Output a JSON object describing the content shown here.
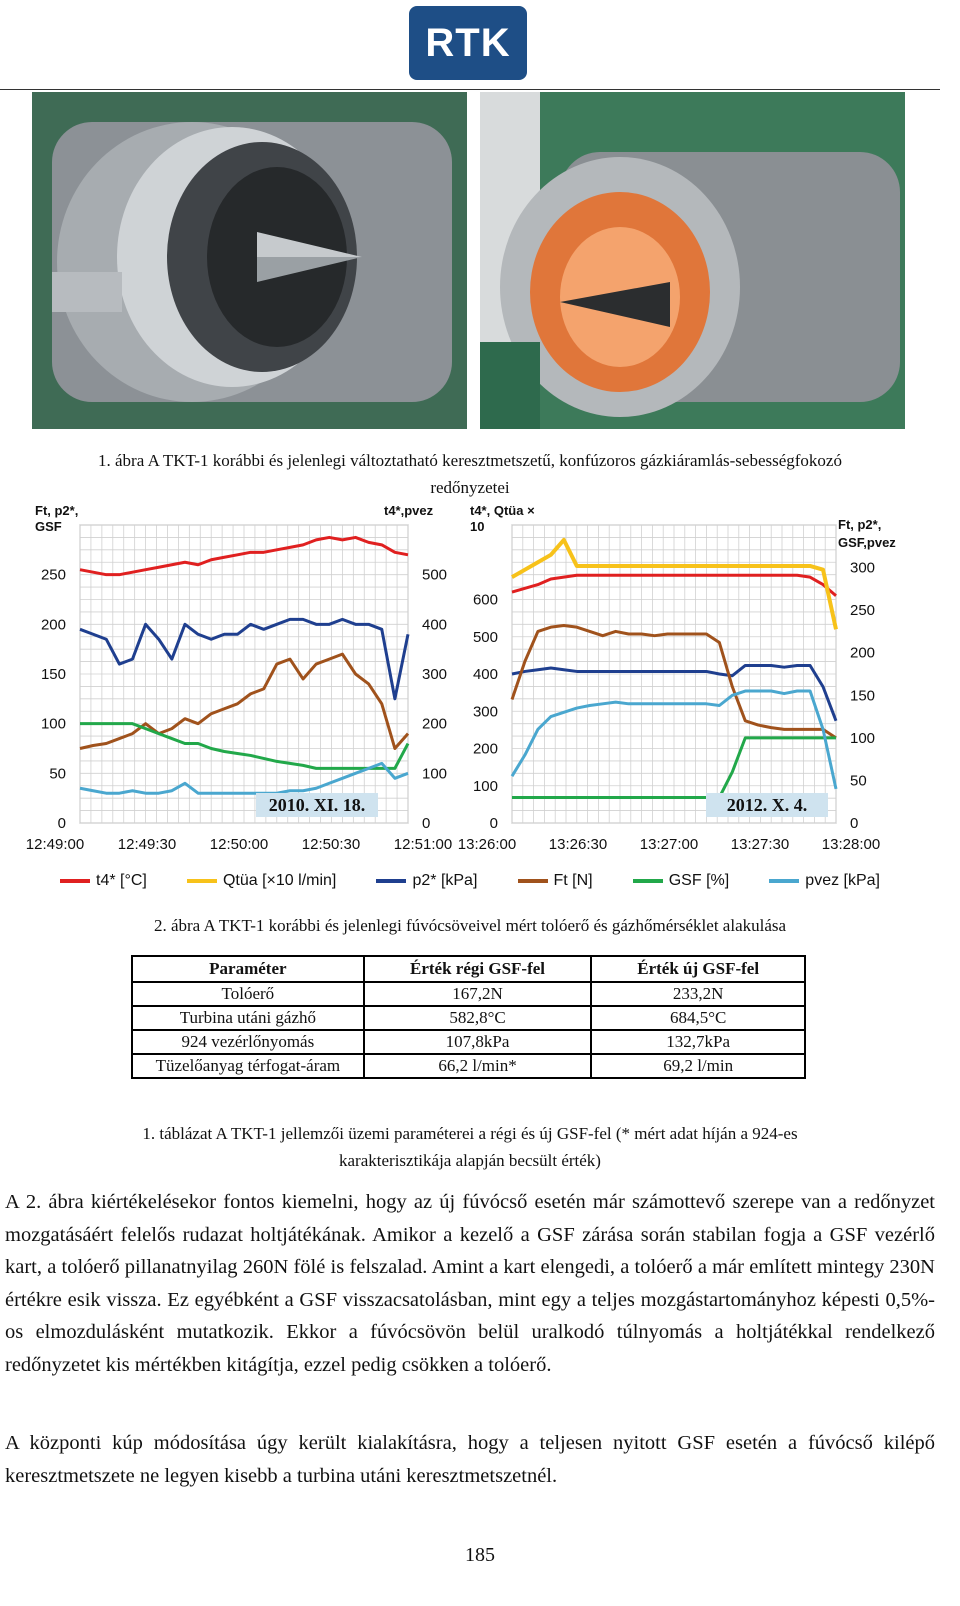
{
  "header": {
    "logo_text": "RTK"
  },
  "photos": {
    "left_desc_color": "#8a8f93",
    "right_desc_color": "#e0763a"
  },
  "figure1": {
    "caption_line1": "1. ábra A TKT-1 korábbi és jelenlegi változtatható keresztmetszetű, konfúzoros gázkiáramlás-sebességfokozó",
    "caption_line2": "redőnyzetei"
  },
  "figure2": {
    "caption": "2. ábra A TKT-1 korábbi és jelenlegi fúvócsöveivel mért tolóerő és gázhőmérséklet alakulása",
    "legend": [
      {
        "label": "t4* [°C]",
        "color": "#e02020"
      },
      {
        "label": "Qtüa [×10 l/min]",
        "color": "#f7c21a"
      },
      {
        "label": "p2* [kPa]",
        "color": "#1f3f8f"
      },
      {
        "label": "Ft [N]",
        "color": "#a0521c"
      },
      {
        "label": "GSF [%]",
        "color": "#22a84a"
      },
      {
        "label": "pvez [kPa]",
        "color": "#4aa7cf"
      }
    ]
  },
  "chart_data": [
    {
      "type": "line",
      "annotation": "2010. XI. 18.",
      "left_axis_label": [
        "Ft, p2*,",
        "GSF"
      ],
      "right_axis_label": "t4*,pvez",
      "left_ticks": [
        0,
        50,
        100,
        150,
        200,
        250
      ],
      "right_ticks": [
        0,
        100,
        200,
        300,
        400,
        500
      ],
      "x_ticks": [
        "12:49:00",
        "12:49:30",
        "12:50:00",
        "12:50:30",
        "12:51:00"
      ],
      "ylim_left": [
        0,
        300
      ],
      "ylim_right": [
        0,
        600
      ],
      "grid": true,
      "x": [
        0,
        5,
        10,
        15,
        20,
        25,
        30,
        35,
        40,
        45,
        50,
        55,
        60,
        65,
        70,
        75,
        80,
        85,
        90,
        95,
        100,
        105,
        110,
        115,
        120,
        125
      ],
      "series": [
        {
          "name": "t4* [°C]",
          "axis": "right",
          "color": "#e02020",
          "values": [
            510,
            505,
            500,
            500,
            505,
            510,
            515,
            520,
            525,
            520,
            530,
            535,
            540,
            545,
            545,
            550,
            555,
            560,
            570,
            575,
            570,
            575,
            565,
            560,
            545,
            540
          ]
        },
        {
          "name": "p2* [kPa]",
          "axis": "left",
          "color": "#1f3f8f",
          "values": [
            195,
            190,
            185,
            160,
            165,
            200,
            185,
            165,
            200,
            190,
            185,
            190,
            190,
            200,
            195,
            200,
            205,
            205,
            200,
            200,
            205,
            200,
            200,
            195,
            125,
            190
          ]
        },
        {
          "name": "Ft [N]",
          "axis": "left",
          "color": "#a0521c",
          "values": [
            75,
            78,
            80,
            85,
            90,
            100,
            90,
            95,
            105,
            100,
            110,
            115,
            120,
            130,
            135,
            160,
            165,
            145,
            160,
            165,
            170,
            150,
            140,
            120,
            75,
            90
          ]
        },
        {
          "name": "GSF [%]",
          "axis": "left",
          "color": "#22a84a",
          "values": [
            100,
            100,
            100,
            100,
            100,
            95,
            90,
            85,
            80,
            80,
            75,
            72,
            70,
            68,
            65,
            62,
            60,
            58,
            55,
            55,
            55,
            55,
            55,
            55,
            55,
            80
          ]
        },
        {
          "name": "pvez [kPa]",
          "axis": "right",
          "color": "#4aa7cf",
          "values": [
            70,
            65,
            60,
            60,
            65,
            60,
            60,
            65,
            80,
            60,
            60,
            60,
            60,
            60,
            60,
            60,
            65,
            65,
            70,
            80,
            90,
            100,
            110,
            120,
            90,
            100
          ]
        }
      ]
    },
    {
      "type": "line",
      "annotation": "2012. X. 4.",
      "left_axis_label": [
        "t4*, Qtüa ×",
        "10"
      ],
      "right_axis_label": [
        "Ft, p2*,",
        "GSF,pvez"
      ],
      "left_ticks": [
        0,
        100,
        200,
        300,
        400,
        500,
        600
      ],
      "right_ticks": [
        0,
        50,
        100,
        150,
        200,
        250,
        300
      ],
      "x_ticks": [
        "13:26:00",
        "13:26:30",
        "13:27:00",
        "13:27:30",
        "13:28:00"
      ],
      "ylim_left": [
        0,
        800
      ],
      "ylim_right": [
        0,
        350
      ],
      "grid": true,
      "x": [
        0,
        5,
        10,
        15,
        20,
        25,
        30,
        35,
        40,
        45,
        50,
        55,
        60,
        65,
        70,
        75,
        80,
        85,
        90,
        95,
        100,
        105,
        110,
        115,
        120,
        125
      ],
      "series": [
        {
          "name": "t4* [°C]",
          "axis": "left",
          "color": "#e02020",
          "values": [
            620,
            630,
            640,
            655,
            660,
            665,
            665,
            665,
            665,
            665,
            665,
            665,
            665,
            665,
            665,
            665,
            665,
            665,
            665,
            665,
            665,
            665,
            665,
            660,
            640,
            610
          ]
        },
        {
          "name": "Qtüa [×10 l/min]",
          "axis": "left",
          "color": "#f7c21a",
          "values": [
            660,
            680,
            700,
            720,
            760,
            690,
            690,
            690,
            690,
            690,
            690,
            690,
            690,
            690,
            690,
            690,
            690,
            690,
            690,
            690,
            690,
            690,
            690,
            690,
            680,
            520
          ]
        },
        {
          "name": "p2* [kPa]",
          "axis": "right",
          "color": "#1f3f8f",
          "values": [
            175,
            178,
            180,
            182,
            180,
            178,
            178,
            178,
            178,
            178,
            178,
            178,
            178,
            178,
            178,
            178,
            175,
            173,
            185,
            185,
            185,
            183,
            185,
            185,
            160,
            120
          ]
        },
        {
          "name": "Ft [N]",
          "axis": "right",
          "color": "#a0521c",
          "values": [
            145,
            190,
            225,
            230,
            232,
            230,
            225,
            220,
            225,
            222,
            222,
            220,
            222,
            222,
            222,
            222,
            212,
            160,
            120,
            115,
            112,
            110,
            110,
            110,
            110,
            100
          ]
        },
        {
          "name": "GSF [%]",
          "axis": "right",
          "color": "#22a84a",
          "values": [
            30,
            30,
            30,
            30,
            30,
            30,
            30,
            30,
            30,
            30,
            30,
            30,
            30,
            30,
            30,
            30,
            30,
            60,
            100,
            100,
            100,
            100,
            100,
            100,
            100,
            100
          ]
        },
        {
          "name": "pvez [kPa]",
          "axis": "right",
          "color": "#4aa7cf",
          "values": [
            55,
            80,
            110,
            125,
            130,
            135,
            138,
            140,
            142,
            140,
            140,
            140,
            140,
            140,
            140,
            140,
            138,
            150,
            155,
            155,
            155,
            152,
            155,
            155,
            110,
            40
          ]
        }
      ]
    }
  ],
  "table1": {
    "headers": [
      "Paraméter",
      "Érték régi GSF-fel",
      "Érték új GSF-fel"
    ],
    "rows": [
      [
        "Tolóerő",
        "167,2N",
        "233,2N"
      ],
      [
        "Turbina utáni gázhő",
        "582,8°C",
        "684,5°C"
      ],
      [
        "924 vezérlőnyomás",
        "107,8kPa",
        "132,7kPa"
      ],
      [
        "Tüzelőanyag térfogat-áram",
        "66,2 l/min*",
        "69,2 l/min"
      ]
    ],
    "caption_line1": "1. táblázat A TKT-1 jellemzői üzemi paraméterei a régi és új GSF-fel (* mért adat híján a 924-es",
    "caption_line2": "karakterisztikája alapján becsült érték)"
  },
  "body": {
    "paragraph1": "A 2. ábra kiértékelésekor fontos kiemelni, hogy az új fúvócső esetén már számottevő szerepe van a redőnyzet mozgatásáért felelős rudazat holtjátékának. Amikor a kezelő a GSF zárása során stabilan fogja a GSF vezérlő kart, a tolóerő pillanatnyilag 260N fölé is felszalad. Amint a kart elengedi, a tolóerő a már említett mintegy 230N értékre esik vissza. Ez egyébként a GSF visszacsatolásban, mint egy a teljes mozgástartományhoz képesti 0,5%-os elmozdulásként mutatkozik. Ekkor a fúvócsövön belül uralkodó túlnyomás a holtjátékkal rendelkező redőnyzetet kis mértékben kitágítja, ezzel pedig csökken a tolóerő.",
    "paragraph2": "A központi kúp módosítása úgy került kialakításra, hogy a teljesen nyitott GSF esetén a fúvócső kilépő keresztmetszete ne legyen kisebb a turbina utáni keresztmetszetnél."
  },
  "page_number": "185"
}
